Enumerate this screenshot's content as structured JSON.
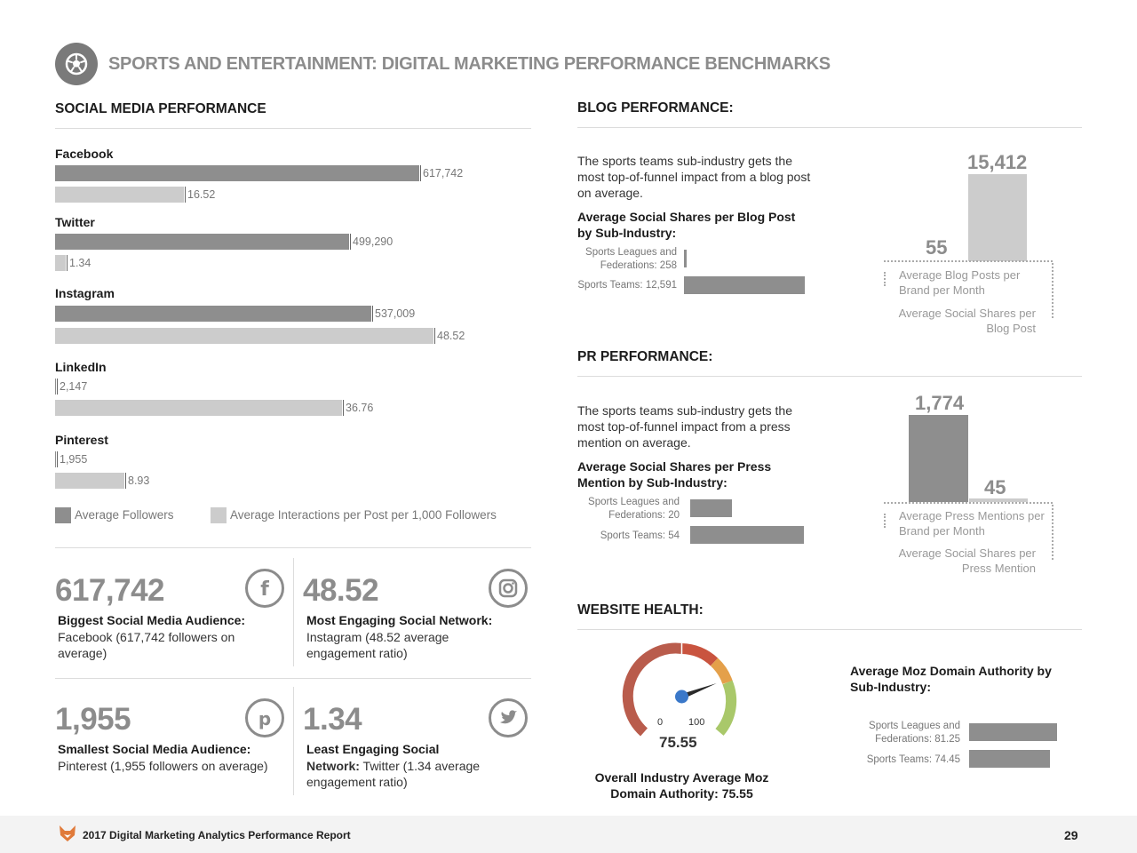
{
  "header": {
    "title": "SPORTS AND ENTERTAINMENT: DIGITAL MARKETING PERFORMANCE BENCHMARKS",
    "icon": "soccer-ball-icon"
  },
  "social": {
    "title": "SOCIAL MEDIA PERFORMANCE",
    "legend": {
      "followers": "Average Followers",
      "interactions": "Average Interactions per Post per 1,000 Followers"
    },
    "networks": [
      {
        "name": "Facebook",
        "followers": "617,742",
        "interactions": "16.52"
      },
      {
        "name": "Twitter",
        "followers": "499,290",
        "interactions": "1.34"
      },
      {
        "name": "Instagram",
        "followers": "537,009",
        "interactions": "48.52"
      },
      {
        "name": "LinkedIn",
        "followers": "2,147",
        "interactions": "36.76"
      },
      {
        "name": "Pinterest",
        "followers": "1,955",
        "interactions": "8.93"
      }
    ],
    "stats": [
      {
        "number": "617,742",
        "head": "Biggest Social Media Audience:",
        "body": "Facebook (617,742 followers on average)",
        "icon": "facebook-icon"
      },
      {
        "number": "48.52",
        "head": "Most Engaging Social Network:",
        "body": "Instagram (48.52 average engagement ratio)",
        "icon": "instagram-icon"
      },
      {
        "number": "1,955",
        "head": "Smallest Social Media Audience:",
        "body": "Pinterest (1,955 followers on average)",
        "icon": "pinterest-icon"
      },
      {
        "number": "1.34",
        "head": "Least Engaging Social",
        "head2": "Network:",
        "body": "Twitter (1.34 average engagement ratio)",
        "icon": "twitter-icon"
      }
    ]
  },
  "blog": {
    "title": "BLOG PERFORMANCE:",
    "para": "The sports teams sub-industry gets the most top-of-funnel impact from a blog post on average.",
    "subhead": "Average Social Shares per Blog Post by Sub-Industry:",
    "rows": [
      {
        "label": "Sports Leagues and",
        "label2": "Federations: 258",
        "value": 258
      },
      {
        "label": "Sports Teams: 12,591",
        "value": 12591
      }
    ],
    "col_left_value": "55",
    "col_right_value": "15,412",
    "caption_left": "Average Blog Posts per Brand per Month",
    "caption_right": "Average Social Shares per Blog Post"
  },
  "pr": {
    "title": "PR PERFORMANCE:",
    "para": "The sports teams sub-industry gets the most top-of-funnel impact from a press mention on average.",
    "subhead": "Average Social Shares per Press Mention by Sub-Industry:",
    "rows": [
      {
        "label": "Sports Leagues and",
        "label2": "Federations: 20",
        "value": 20
      },
      {
        "label": "Sports Teams: 54",
        "value": 54
      }
    ],
    "col_left_value": "1,774",
    "col_right_value": "45",
    "caption_left": "Average Press Mentions per Brand per Month",
    "caption_right": "Average Social Shares per Press Mention"
  },
  "website": {
    "title": "WEBSITE HEALTH:",
    "gauge_min": "0",
    "gauge_max": "100",
    "gauge_value": "75.55",
    "gauge_caption": "Overall Industry Average Moz Domain Authority: 75.55",
    "moz_title": "Average Moz Domain Authority by Sub-Industry:",
    "rows": [
      {
        "label": "Sports Leagues and",
        "label2": "Federations: 81.25",
        "value": 81.25
      },
      {
        "label": "Sports Teams: 74.45",
        "value": 74.45
      }
    ]
  },
  "footer": {
    "report": "2017 Digital Marketing Analytics Performance Report",
    "page": "29"
  },
  "chart_data": [
    {
      "type": "bar",
      "title": "SOCIAL MEDIA PERFORMANCE",
      "categories": [
        "Facebook",
        "Twitter",
        "Instagram",
        "LinkedIn",
        "Pinterest"
      ],
      "series": [
        {
          "name": "Average Followers",
          "values": [
            617742,
            499290,
            537009,
            2147,
            1955
          ]
        },
        {
          "name": "Average Interactions per Post per 1,000 Followers",
          "values": [
            16.52,
            1.34,
            48.52,
            36.76,
            8.93
          ]
        }
      ]
    },
    {
      "type": "bar",
      "title": "Average Social Shares per Blog Post by Sub-Industry:",
      "categories": [
        "Sports Leagues and Federations",
        "Sports Teams"
      ],
      "values": [
        258,
        12591
      ]
    },
    {
      "type": "bar",
      "categories": [
        "Average Blog Posts per Brand per Month",
        "Average Social Shares per Blog Post"
      ],
      "values": [
        55,
        15412
      ]
    },
    {
      "type": "bar",
      "title": "Average Social Shares per Press Mention by Sub-Industry:",
      "categories": [
        "Sports Leagues and Federations",
        "Sports Teams"
      ],
      "values": [
        20,
        54
      ]
    },
    {
      "type": "bar",
      "categories": [
        "Average Press Mentions per Brand per Month",
        "Average Social Shares per Press Mention"
      ],
      "values": [
        1774,
        45
      ]
    },
    {
      "type": "gauge",
      "title": "Overall Industry Average Moz Domain Authority",
      "min": 0,
      "max": 100,
      "value": 75.55
    },
    {
      "type": "bar",
      "title": "Average Moz Domain Authority by Sub-Industry:",
      "categories": [
        "Sports Leagues and Federations",
        "Sports Teams"
      ],
      "values": [
        81.25,
        74.45
      ]
    }
  ]
}
